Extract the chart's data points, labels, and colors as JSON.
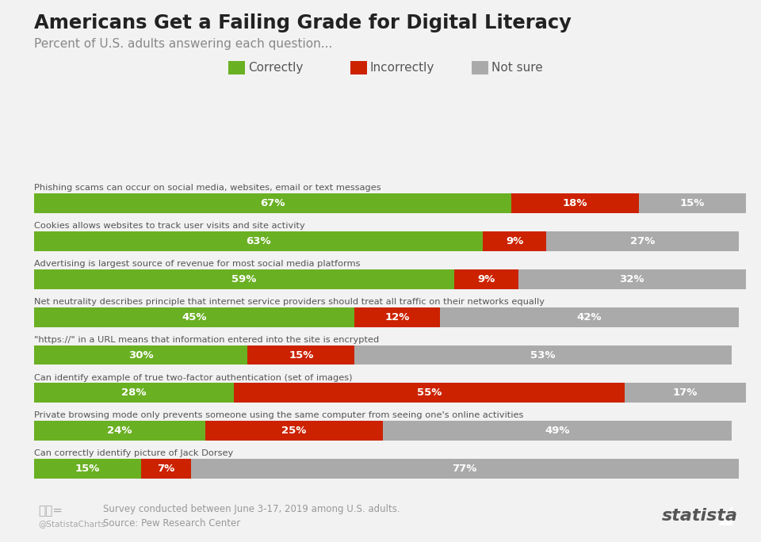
{
  "title": "Americans Get a Failing Grade for Digital Literacy",
  "subtitle": "Percent of U.S. adults answering each question...",
  "background_color": "#f2f2f2",
  "colors": {
    "correct": "#6ab023",
    "incorrect": "#cc2200",
    "not_sure": "#aaaaaa"
  },
  "legend_labels": [
    "Correctly",
    "Incorrectly",
    "Not sure"
  ],
  "questions": [
    "Phishing scams can occur on social media, websites, email or text messages",
    "Cookies allows websites to track user visits and site activity",
    "Advertising is largest source of revenue for most social media platforms",
    "Net neutrality describes principle that internet service providers should treat all traffic on their networks equally",
    "\"https://\" in a URL means that information entered into the site is encrypted",
    "Can identify example of true two-factor authentication (set of images)",
    "Private browsing mode only prevents someone using the same computer from seeing one's online activities",
    "Can correctly identify picture of Jack Dorsey"
  ],
  "data": [
    [
      67,
      18,
      15
    ],
    [
      63,
      9,
      27
    ],
    [
      59,
      9,
      32
    ],
    [
      45,
      12,
      42
    ],
    [
      30,
      15,
      53
    ],
    [
      28,
      55,
      17
    ],
    [
      24,
      25,
      49
    ],
    [
      15,
      7,
      77
    ]
  ],
  "footer_line1": "Survey conducted between June 3-17, 2019 among U.S. adults.",
  "footer_line2": "Source: Pew Research Center",
  "footer_right": "statista"
}
